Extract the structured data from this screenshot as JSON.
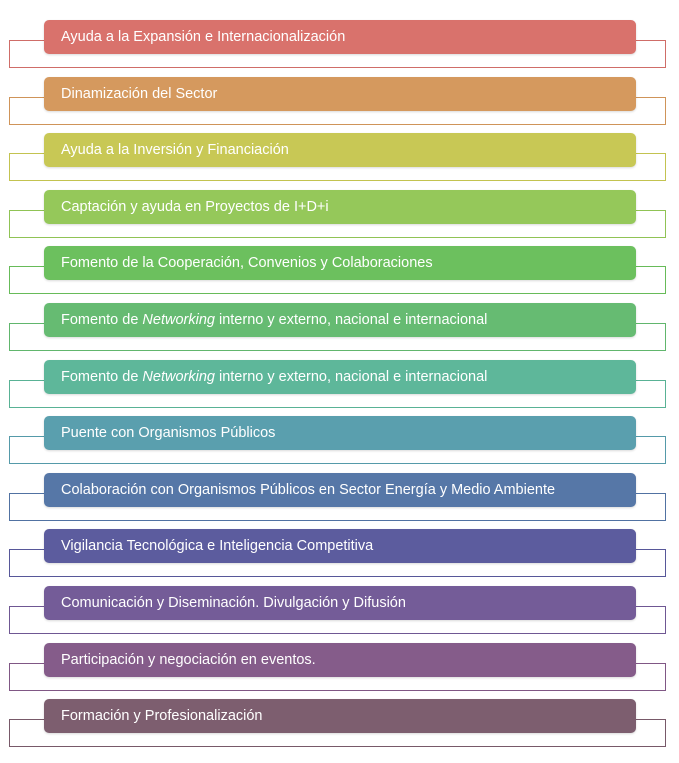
{
  "diagram": {
    "items": [
      {
        "parts": [
          {
            "text": "Ayuda a la Expansión e Internacionalización"
          }
        ],
        "color": "#d9726c",
        "line_color": "#cf6d68"
      },
      {
        "parts": [
          {
            "text": "Dinamización del Sector"
          }
        ],
        "color": "#d5995e",
        "line_color": "#cf9459"
      },
      {
        "parts": [
          {
            "text": "Ayuda a la Inversión y Financiación"
          }
        ],
        "color": "#c8c855",
        "line_color": "#c3c350"
      },
      {
        "parts": [
          {
            "text": "Captación y ayuda en Proyectos de I+D+i"
          }
        ],
        "color": "#95c85a",
        "line_color": "#90c355"
      },
      {
        "parts": [
          {
            "text": "Fomento de la Cooperación, Convenios y Colaboraciones"
          }
        ],
        "color": "#6cc05e",
        "line_color": "#67bb59"
      },
      {
        "parts": [
          {
            "text": "Fomento de "
          },
          {
            "text": "Networking",
            "italic": true
          },
          {
            "text": " interno y externo, nacional e internacional"
          }
        ],
        "color": "#66bb72",
        "line_color": "#61b66d"
      },
      {
        "parts": [
          {
            "text": "Fomento de "
          },
          {
            "text": "Networking",
            "italic": true
          },
          {
            "text": " interno y externo, nacional e internacional"
          }
        ],
        "color": "#5eb79a",
        "line_color": "#59b295"
      },
      {
        "parts": [
          {
            "text": "Puente con Organismos Públicos"
          }
        ],
        "color": "#5a9fae",
        "line_color": "#559aa9"
      },
      {
        "parts": [
          {
            "text": "Colaboración con Organismos Públicos en Sector Energía y Medio Ambiente"
          }
        ],
        "color": "#5677a7",
        "line_color": "#5172a2"
      },
      {
        "parts": [
          {
            "text": "Vigilancia Tecnológica e Inteligencia Competitiva"
          }
        ],
        "color": "#5c5c9e",
        "line_color": "#575799"
      },
      {
        "parts": [
          {
            "text": "Comunicación y Diseminación. Divulgación y Difusión"
          }
        ],
        "color": "#745c98",
        "line_color": "#6f5793"
      },
      {
        "parts": [
          {
            "text": "Participación y negociación en eventos."
          }
        ],
        "color": "#855c8a",
        "line_color": "#805785"
      },
      {
        "parts": [
          {
            "text": "Formación y Profesionalización"
          }
        ],
        "color": "#7d5e6f",
        "line_color": "#785969"
      }
    ]
  }
}
